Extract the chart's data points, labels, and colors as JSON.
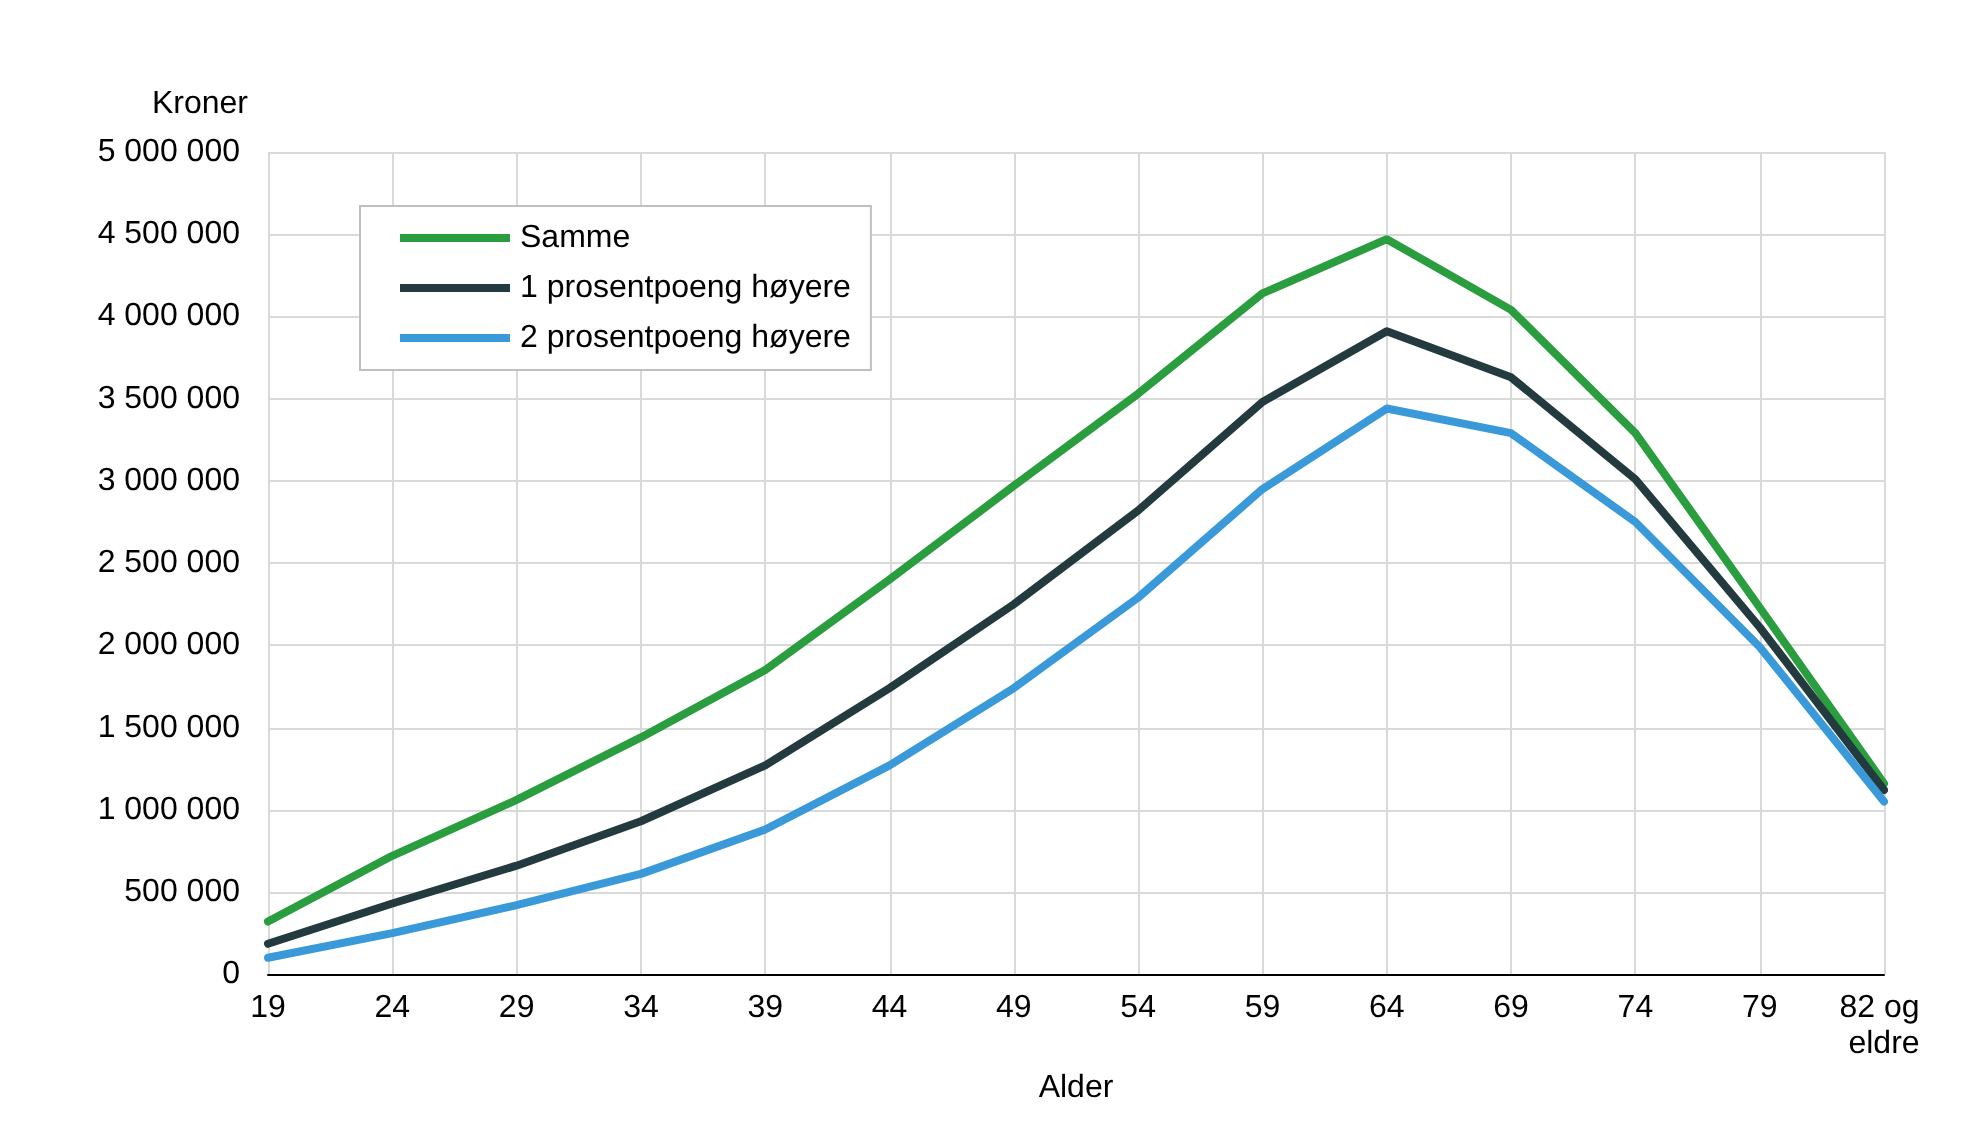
{
  "chart_data": {
    "type": "line",
    "ylabel": "Kroner",
    "xlabel": "Alder",
    "categories": [
      "19",
      "24",
      "29",
      "34",
      "39",
      "44",
      "49",
      "54",
      "59",
      "64",
      "69",
      "74",
      "79",
      "82 og eldre"
    ],
    "series": [
      {
        "name": "Samme",
        "color": "#2a9d3f",
        "values": [
          320000,
          720000,
          1060000,
          1440000,
          1850000,
          2400000,
          2970000,
          3530000,
          4140000,
          4470000,
          4040000,
          3290000,
          2230000,
          1160000
        ]
      },
      {
        "name": "1 prosentpoeng høyere",
        "color": "#233a3f",
        "values": [
          185000,
          430000,
          660000,
          930000,
          1270000,
          1740000,
          2250000,
          2820000,
          3480000,
          3910000,
          3630000,
          3010000,
          2110000,
          1120000
        ]
      },
      {
        "name": "2 prosentpoeng høyere",
        "color": "#3a9ad9",
        "values": [
          100000,
          250000,
          420000,
          610000,
          880000,
          1270000,
          1740000,
          2290000,
          2950000,
          3440000,
          3290000,
          2750000,
          1990000,
          1050000
        ]
      }
    ],
    "ylim": [
      0,
      5000000
    ],
    "yticks": [
      0,
      {
        "value": 500000,
        "label": "500 000"
      },
      {
        "value": 1000000,
        "label": "1 000 000"
      },
      {
        "value": 1500000,
        "label": "1 500 000"
      },
      {
        "value": 2000000,
        "label": "2 000 000"
      },
      {
        "value": 2500000,
        "label": "2 500 000"
      },
      {
        "value": 3000000,
        "label": "3 000 000"
      },
      {
        "value": 3500000,
        "label": "3 500 000"
      },
      {
        "value": 4000000,
        "label": "4 000 000"
      },
      {
        "value": 4500000,
        "label": "4 500 000"
      },
      {
        "value": 5000000,
        "label": "5 000 000"
      }
    ],
    "grid": true,
    "legend": "top left",
    "marker": "none",
    "line_style": "solid"
  }
}
